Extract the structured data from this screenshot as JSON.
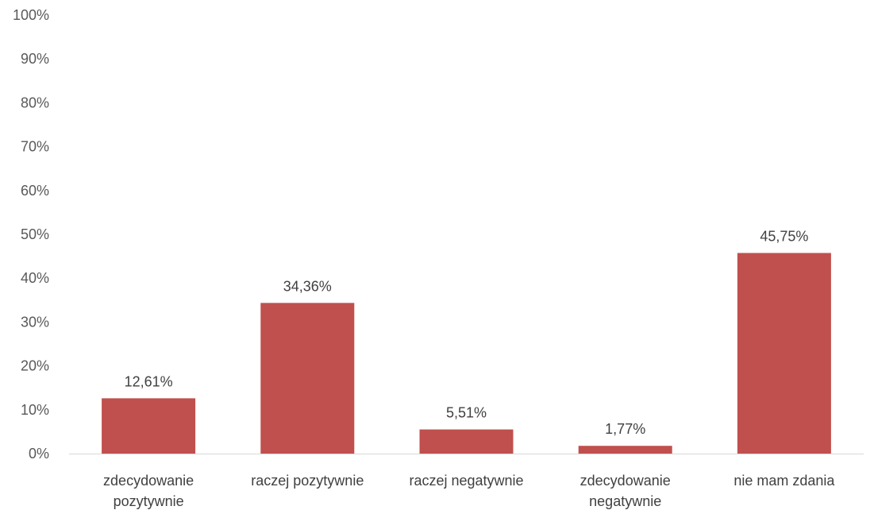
{
  "chart_data": {
    "type": "bar",
    "categories": [
      [
        "zdecydowanie",
        "pozytywnie"
      ],
      [
        "raczej pozytywnie"
      ],
      [
        "raczej negatywnie"
      ],
      [
        "zdecydowanie",
        "negatywnie"
      ],
      [
        "nie mam zdania"
      ]
    ],
    "values": [
      12.61,
      34.36,
      5.51,
      1.77,
      45.75
    ],
    "data_labels": [
      "12,61%",
      "34,36%",
      "5,51%",
      "1,77%",
      "45,75%"
    ],
    "ylim": [
      0,
      100
    ],
    "y_ticks": [
      0,
      10,
      20,
      30,
      40,
      50,
      60,
      70,
      80,
      90,
      100
    ],
    "y_tick_labels": [
      "0%",
      "10%",
      "20%",
      "30%",
      "40%",
      "50%",
      "60%",
      "70%",
      "80%",
      "90%",
      "100%"
    ],
    "title": "",
    "xlabel": "",
    "ylabel": "",
    "grid": false,
    "legend": "none",
    "bar_color": "#c0504d",
    "axis_color": "#d9d9d9"
  }
}
